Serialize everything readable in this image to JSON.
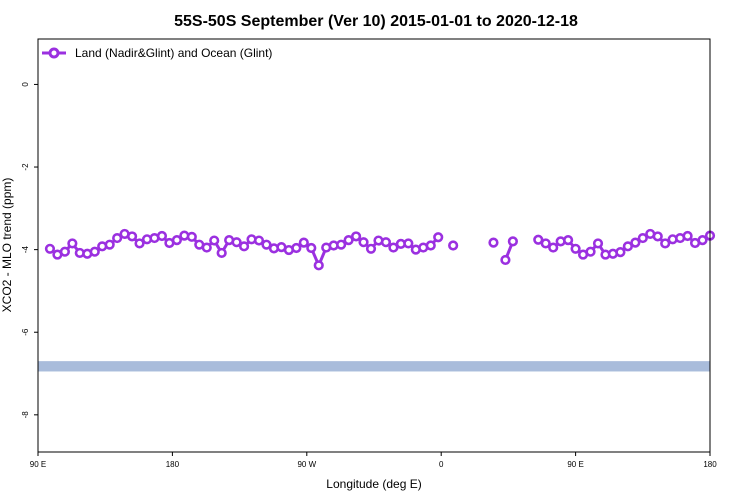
{
  "chart_data": {
    "type": "line",
    "title": "55S-50S September (Ver 10)   2015-01-01 to 2020-12-18",
    "xlabel": "Longitude (deg E)",
    "ylabel": "XCO2 - MLO trend (ppm)",
    "xlim": [
      90,
      540
    ],
    "ylim": [
      -8.9,
      1.1
    ],
    "x_ticks": [
      {
        "value": 90,
        "label": "90 E"
      },
      {
        "value": 180,
        "label": "180"
      },
      {
        "value": 270,
        "label": "90 W"
      },
      {
        "value": 360,
        "label": "0"
      },
      {
        "value": 450,
        "label": "90 E"
      },
      {
        "value": 540,
        "label": "180"
      }
    ],
    "y_ticks": [
      {
        "value": 0,
        "label": "0"
      },
      {
        "value": -2,
        "label": "-2"
      },
      {
        "value": -4,
        "label": "-4"
      },
      {
        "value": -6,
        "label": "-6"
      },
      {
        "value": -8,
        "label": "-8"
      }
    ],
    "legend": {
      "position": "top-left"
    },
    "series": [
      {
        "name": "Land (Nadir&Glint) and Ocean (Glint)",
        "color": "#9B30E0",
        "segments": [
          {
            "x": [
              98,
              103,
              108,
              113,
              118,
              123,
              128,
              133,
              138,
              143,
              148,
              153,
              158,
              163,
              168,
              173,
              178,
              183,
              188,
              193,
              198,
              203,
              208,
              213,
              218,
              223,
              228,
              233,
              238,
              243,
              248,
              253,
              258,
              263,
              268,
              273,
              278,
              283,
              288,
              293,
              298,
              303,
              308,
              313,
              318,
              323,
              328,
              333,
              338,
              343,
              348,
              353,
              358
            ],
            "y": [
              -3.98,
              -4.12,
              -4.05,
              -3.85,
              -4.08,
              -4.1,
              -4.05,
              -3.92,
              -3.88,
              -3.72,
              -3.62,
              -3.68,
              -3.85,
              -3.75,
              -3.72,
              -3.67,
              -3.84,
              -3.77,
              -3.66,
              -3.69,
              -3.88,
              -3.95,
              -3.78,
              -4.08,
              -3.77,
              -3.82,
              -3.92,
              -3.75,
              -3.78,
              -3.88,
              -3.97,
              -3.94,
              -4.01,
              -3.96,
              -3.83,
              -3.96,
              -4.38,
              -3.95,
              -3.9,
              -3.88,
              -3.77,
              -3.68,
              -3.82,
              -3.98,
              -3.78,
              -3.82,
              -3.95,
              -3.86,
              -3.85,
              -4.0,
              -3.95,
              -3.9,
              -3.7
            ]
          },
          {
            "x": [
              368
            ],
            "y": [
              -3.9
            ]
          },
          {
            "x": [
              395
            ],
            "y": [
              -3.83
            ]
          },
          {
            "x": [
              403,
              408
            ],
            "y": [
              -4.25,
              -3.8
            ]
          },
          {
            "x": [
              425,
              430,
              435,
              440,
              445,
              450,
              455,
              460,
              465,
              470,
              475,
              480,
              485,
              490,
              495,
              500,
              505,
              510,
              515,
              520,
              525,
              530,
              535,
              540
            ],
            "y": [
              -3.76,
              -3.85,
              -3.95,
              -3.8,
              -3.77,
              -3.98,
              -4.12,
              -4.05,
              -3.85,
              -4.12,
              -4.1,
              -4.06,
              -3.92,
              -3.83,
              -3.72,
              -3.62,
              -3.68,
              -3.85,
              -3.75,
              -3.72,
              -3.67,
              -3.84,
              -3.77,
              -3.66
            ]
          }
        ]
      }
    ],
    "background_band": {
      "y_range": [
        -6.95,
        -6.7
      ],
      "color": "#A9BCDB"
    }
  }
}
